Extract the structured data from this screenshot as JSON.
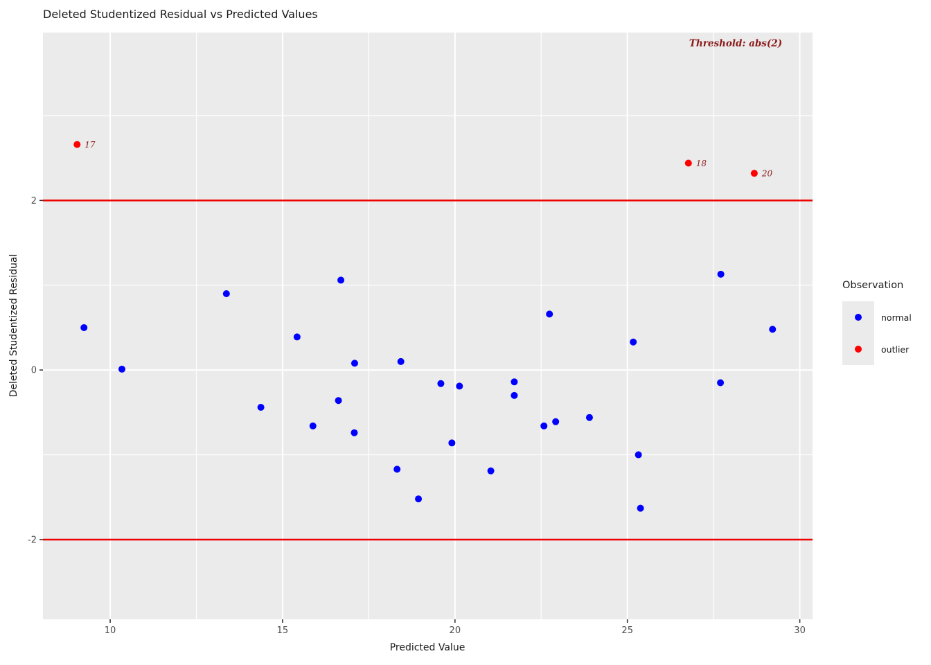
{
  "chart_data": {
    "type": "scatter",
    "title": "Deleted Studentized Residual vs Predicted Values",
    "xlabel": "Predicted Value",
    "ylabel": "Deleted Studentized Residual",
    "xlim": [
      8.05,
      30.37
    ],
    "ylim": [
      -2.94,
      3.98
    ],
    "x_ticks": [
      10,
      15,
      20,
      25,
      30
    ],
    "x_minor_ticks": [
      12.5,
      17.5,
      22.5,
      27.5
    ],
    "y_ticks": [
      2,
      0,
      -2
    ],
    "y_tick_labels": [
      "2",
      "0",
      "-2"
    ],
    "y_minor_ticks": [
      3,
      1,
      -1
    ],
    "grid": true,
    "panel_bg": "#EBEBEB",
    "grid_color": "#FFFFFF",
    "tick_color": "#333333",
    "tick_label_color": "#4D4D4D",
    "threshold": {
      "label": "Threshold: abs(2)",
      "values": [
        2,
        -2
      ],
      "line_color": "#EE0000",
      "text_color": "#8B1A1A",
      "label_x": 28.14,
      "label_y": 3.85
    },
    "series": [
      {
        "name": "normal",
        "color": "#0000FF",
        "points": [
          [
            9.24,
            0.5
          ],
          [
            10.34,
            0.01
          ],
          [
            13.37,
            0.9
          ],
          [
            14.37,
            -0.44
          ],
          [
            15.42,
            0.39
          ],
          [
            15.88,
            -0.66
          ],
          [
            16.62,
            -0.36
          ],
          [
            16.69,
            1.06
          ],
          [
            17.09,
            0.08
          ],
          [
            17.08,
            -0.74
          ],
          [
            18.32,
            -1.17
          ],
          [
            18.43,
            0.1
          ],
          [
            18.94,
            -1.52
          ],
          [
            19.59,
            -0.16
          ],
          [
            19.91,
            -0.86
          ],
          [
            20.13,
            -0.19
          ],
          [
            21.04,
            -1.19
          ],
          [
            21.72,
            -0.14
          ],
          [
            21.72,
            -0.3
          ],
          [
            22.58,
            -0.66
          ],
          [
            22.74,
            0.66
          ],
          [
            22.92,
            -0.61
          ],
          [
            23.9,
            -0.56
          ],
          [
            25.17,
            0.33
          ],
          [
            25.32,
            -1.0
          ],
          [
            25.38,
            -1.63
          ],
          [
            27.71,
            1.13
          ],
          [
            27.7,
            -0.15
          ],
          [
            29.21,
            0.48
          ]
        ]
      },
      {
        "name": "outlier",
        "color": "#FF0000",
        "label_color": "#8B1A1A",
        "points": [
          [
            9.04,
            2.66
          ],
          [
            26.77,
            2.44
          ],
          [
            28.68,
            2.32
          ]
        ],
        "labels": [
          "17",
          "18",
          "20"
        ]
      }
    ]
  },
  "legend": {
    "title": "Observation",
    "items": [
      {
        "label": "normal",
        "color": "#0000FF"
      },
      {
        "label": "outlier",
        "color": "#FF0000"
      }
    ]
  }
}
